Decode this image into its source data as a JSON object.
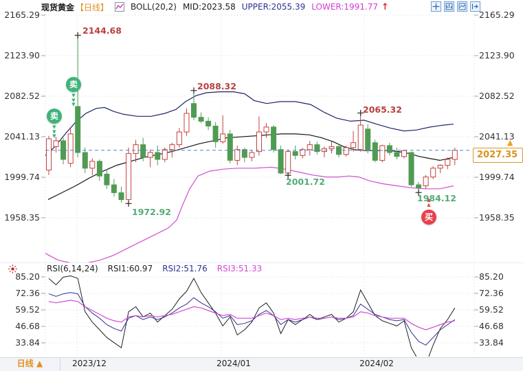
{
  "header": {
    "symbol": "现货黄金",
    "period": "【日线】",
    "boll_label": "BOLL(20,2)",
    "mid_label": "MID:2023.58",
    "upper_label": "UPPER:2055.39",
    "lower_label": "LOWER:1991.77",
    "trend_arrow": "↑"
  },
  "toolbar_icons": [
    {
      "name": "crosshair-icon"
    },
    {
      "name": "indicator-pane-icon"
    },
    {
      "name": "chart-pane-icon"
    },
    {
      "name": "collapse-right-icon"
    }
  ],
  "main_axis": {
    "left": [
      "2165.29",
      "2123.90",
      "2082.52",
      "2041.13",
      "1999.74",
      "1958.35"
    ],
    "right": [
      "2165.29",
      "2123.90",
      "2082.52",
      "2041.13",
      "1999.74",
      "1958.35"
    ]
  },
  "rsi_axis": {
    "left": [
      "85.20",
      "72.36",
      "59.52",
      "46.68",
      "33.84"
    ],
    "right": [
      "85.20",
      "72.36",
      "59.52",
      "46.68",
      "33.84"
    ]
  },
  "x_axis": {
    "labels": [
      "2023/12",
      "2024/01",
      "2024/02"
    ]
  },
  "annotations": [
    {
      "text": "2144.68",
      "kind": "high"
    },
    {
      "text": "2088.32",
      "kind": "high"
    },
    {
      "text": "2065.32",
      "kind": "high"
    },
    {
      "text": "1972.92",
      "kind": "low"
    },
    {
      "text": "2001.72",
      "kind": "low"
    },
    {
      "text": "1984.12",
      "kind": "low"
    }
  ],
  "signals": [
    {
      "label": "卖",
      "type": "sell"
    },
    {
      "label": "卖",
      "type": "sell"
    },
    {
      "label": "买",
      "type": "buy"
    }
  ],
  "signal_arrows": {
    "down": "▼▼▼",
    "up": "▲▲"
  },
  "price_tag": {
    "value": "2027.35",
    "arrow": "▲"
  },
  "rsi_header": {
    "title": "RSI(6,14,24)",
    "rsi1": "RSI1:60.97",
    "rsi2": "RSI2:51.76",
    "rsi3": "RSI3:51.33"
  },
  "bottom_bar": {
    "tab": "日线 ▲"
  },
  "colors": {
    "up_candle": "#c4403e",
    "down_candle": "#4f9b52",
    "mid_band": "#141414",
    "upper_band": "#1c2466",
    "lower_band": "#cf4ecf",
    "rsi1": "#1e1e1e",
    "rsi2": "#2e3192",
    "rsi3": "#d24ad2",
    "price_line": "#4a85cc",
    "grid": "#e3e3e3",
    "tick": "#9aa0a8",
    "accent_orange": "#dd9422",
    "sell_green": "#3fb379",
    "buy_red": "#e8404e"
  },
  "chart_data": {
    "type": "candlestick",
    "title": "现货黄金 日线 BOLL(20,2) + RSI(6,14,24)",
    "y_ticks_main": [
      2165.29,
      2123.9,
      2082.52,
      2041.13,
      1999.74,
      1958.35
    ],
    "y_ticks_rsi": [
      85.2,
      72.36,
      59.52,
      46.68,
      33.84
    ],
    "x_labels": [
      "2023/12",
      "2024/01",
      "2024/02"
    ],
    "current_price": 2027.35,
    "boll": {
      "period": 20,
      "dev": 2,
      "mid": 2023.58,
      "upper": 2055.39,
      "lower": 1991.77
    },
    "rsi_current": {
      "rsi1": 60.97,
      "rsi2": 51.76,
      "rsi3": 51.33
    },
    "candles": [
      [
        2007,
        2042,
        2002,
        2039
      ],
      [
        2031,
        2041,
        2025,
        2037
      ],
      [
        2037,
        2040,
        2013,
        2018
      ],
      [
        2014,
        2050,
        2010,
        2044
      ],
      [
        2072,
        2144.68,
        2020,
        2025
      ],
      [
        2025,
        2030,
        2004,
        2009
      ],
      [
        2009,
        2019,
        2002,
        2016
      ],
      [
        2016,
        2018,
        1996,
        2001
      ],
      [
        2003,
        2008,
        1988,
        1992
      ],
      [
        1992,
        1998,
        1980,
        1984
      ],
      [
        1984,
        1990,
        1974,
        1977
      ],
      [
        1977,
        2030,
        1972.92,
        2024
      ],
      [
        2024,
        2038,
        2015,
        2033
      ],
      [
        2033,
        2040,
        2016,
        2020
      ],
      [
        2020,
        2028,
        2010,
        2025
      ],
      [
        2025,
        2032,
        2012,
        2018
      ],
      [
        2018,
        2030,
        2015,
        2028
      ],
      [
        2028,
        2035,
        2020,
        2033
      ],
      [
        2033,
        2050,
        2030,
        2046
      ],
      [
        2046,
        2070,
        2042,
        2065
      ],
      [
        2075,
        2088.32,
        2058,
        2061
      ],
      [
        2061,
        2066,
        2055,
        2057
      ],
      [
        2057,
        2061,
        2048,
        2052
      ],
      [
        2052,
        2056,
        2030,
        2036
      ],
      [
        2036,
        2063,
        2034,
        2044
      ],
      [
        2044,
        2048,
        2014,
        2017
      ],
      [
        2017,
        2032,
        2012,
        2028
      ],
      [
        2028,
        2030,
        2015,
        2020
      ],
      [
        2020,
        2027,
        2016,
        2025
      ],
      [
        2026,
        2062,
        2022,
        2046
      ],
      [
        2046,
        2055,
        2040,
        2051
      ],
      [
        2051,
        2053,
        2025,
        2028
      ],
      [
        2028,
        2032,
        2003,
        2004
      ],
      [
        2004,
        2028,
        2001.72,
        2026
      ],
      [
        2026,
        2032,
        2018,
        2022
      ],
      [
        2022,
        2030,
        2019,
        2028
      ],
      [
        2028,
        2037,
        2022,
        2033
      ],
      [
        2033,
        2036,
        2023,
        2026
      ],
      [
        2026,
        2031,
        2020,
        2029
      ],
      [
        2029,
        2036,
        2024,
        2031
      ],
      [
        2031,
        2034,
        2020,
        2023
      ],
      [
        2023,
        2032,
        2021,
        2030
      ],
      [
        2030,
        2047,
        2026,
        2035
      ],
      [
        2028,
        2065.32,
        2026,
        2053
      ],
      [
        2049,
        2054,
        2024,
        2028
      ],
      [
        2035,
        2038,
        2015,
        2017
      ],
      [
        2017,
        2033,
        2015,
        2032
      ],
      [
        2032,
        2035,
        2022,
        2025
      ],
      [
        2025,
        2030,
        2018,
        2021
      ],
      [
        2021,
        2028,
        2019,
        2027
      ],
      [
        2025,
        2026,
        1990,
        1992
      ],
      [
        1992,
        1995,
        1984.12,
        1989
      ],
      [
        1991,
        2002,
        1988,
        2000
      ],
      [
        2000,
        2011,
        1998,
        2009
      ],
      [
        2009,
        2013,
        2004,
        2012
      ],
      [
        2012,
        2020,
        2008,
        2018
      ],
      [
        2018,
        2030,
        2012,
        2027.35
      ]
    ],
    "extremes": [
      {
        "index": 4,
        "value": 2144.68,
        "kind": "high"
      },
      {
        "index": 20,
        "value": 2088.32,
        "kind": "high"
      },
      {
        "index": 43,
        "value": 2065.32,
        "kind": "high"
      },
      {
        "index": 11,
        "value": 1972.92,
        "kind": "low"
      },
      {
        "index": 33,
        "value": 2001.72,
        "kind": "low"
      },
      {
        "index": 51,
        "value": 1984.12,
        "kind": "low"
      }
    ],
    "overlays": {
      "upper_band": [
        [
          66,
          2022
        ],
        [
          80,
          2031
        ],
        [
          95,
          2044
        ],
        [
          110,
          2056
        ],
        [
          125,
          2065
        ],
        [
          140,
          2070
        ],
        [
          152,
          2071
        ],
        [
          165,
          2067
        ],
        [
          180,
          2064
        ],
        [
          200,
          2062
        ],
        [
          220,
          2062
        ],
        [
          240,
          2065
        ],
        [
          256,
          2069
        ],
        [
          270,
          2077
        ],
        [
          285,
          2083
        ],
        [
          300,
          2086
        ],
        [
          320,
          2087
        ],
        [
          340,
          2087
        ],
        [
          356,
          2085
        ],
        [
          370,
          2078
        ],
        [
          388,
          2075
        ],
        [
          408,
          2077
        ],
        [
          430,
          2077
        ],
        [
          452,
          2074
        ],
        [
          472,
          2066
        ],
        [
          490,
          2060
        ],
        [
          510,
          2057
        ],
        [
          530,
          2058
        ],
        [
          548,
          2054
        ],
        [
          568,
          2050
        ],
        [
          588,
          2047
        ],
        [
          606,
          2048
        ],
        [
          626,
          2051
        ],
        [
          645,
          2053
        ],
        [
          660,
          2054
        ]
      ],
      "mid_band": [
        [
          70,
          1977
        ],
        [
          90,
          1984
        ],
        [
          110,
          1991
        ],
        [
          130,
          1999
        ],
        [
          150,
          2006
        ],
        [
          170,
          2012
        ],
        [
          190,
          2016
        ],
        [
          210,
          2020
        ],
        [
          230,
          2023
        ],
        [
          250,
          2026
        ],
        [
          270,
          2030
        ],
        [
          290,
          2034
        ],
        [
          310,
          2037
        ],
        [
          330,
          2040
        ],
        [
          350,
          2041
        ],
        [
          370,
          2042
        ],
        [
          390,
          2043
        ],
        [
          410,
          2044
        ],
        [
          430,
          2044
        ],
        [
          450,
          2043
        ],
        [
          468,
          2040
        ],
        [
          485,
          2036
        ],
        [
          500,
          2031
        ],
        [
          515,
          2028
        ],
        [
          530,
          2027
        ],
        [
          548,
          2027
        ],
        [
          565,
          2027
        ],
        [
          580,
          2026
        ],
        [
          595,
          2024
        ],
        [
          610,
          2021
        ],
        [
          625,
          2019
        ],
        [
          640,
          2017
        ],
        [
          660,
          2020
        ]
      ],
      "lower_band": [
        [
          66,
          1922
        ],
        [
          85,
          1915
        ],
        [
          105,
          1912
        ],
        [
          125,
          1912
        ],
        [
          145,
          1915
        ],
        [
          165,
          1920
        ],
        [
          185,
          1927
        ],
        [
          205,
          1934
        ],
        [
          225,
          1941
        ],
        [
          245,
          1948
        ],
        [
          257,
          1956
        ],
        [
          266,
          1972
        ],
        [
          276,
          1988
        ],
        [
          288,
          2001
        ],
        [
          305,
          2006
        ],
        [
          325,
          2008
        ],
        [
          345,
          2009
        ],
        [
          370,
          2009
        ],
        [
          395,
          2010
        ],
        [
          415,
          2008
        ],
        [
          435,
          2005
        ],
        [
          455,
          2002
        ],
        [
          475,
          2000
        ],
        [
          492,
          2000
        ],
        [
          508,
          2001
        ],
        [
          522,
          2000
        ],
        [
          538,
          1996
        ],
        [
          558,
          1993
        ],
        [
          578,
          1991
        ],
        [
          598,
          1989
        ],
        [
          618,
          1988
        ],
        [
          640,
          1988
        ],
        [
          660,
          1991
        ]
      ]
    },
    "rsi_series": {
      "rsi1": [
        84,
        79,
        85,
        86,
        84,
        58,
        50,
        44,
        38,
        34,
        30,
        58,
        62,
        54,
        57,
        50,
        55,
        60,
        68,
        74,
        84,
        73,
        65,
        57,
        47,
        54,
        40,
        44,
        50,
        61,
        65,
        57,
        41,
        52,
        48,
        52,
        56,
        52,
        54,
        56,
        50,
        53,
        58,
        75,
        65,
        55,
        51,
        49,
        47,
        51,
        30,
        20,
        17,
        32,
        45,
        52,
        61
      ],
      "rsi2": [
        72,
        70,
        72,
        73,
        72,
        62,
        57,
        53,
        48,
        45,
        43,
        53,
        55,
        52,
        54,
        52,
        54,
        57,
        61,
        64,
        69,
        65,
        62,
        58,
        53,
        55,
        48,
        49,
        51,
        56,
        59,
        55,
        48,
        52,
        50,
        52,
        54,
        52,
        53,
        54,
        52,
        53,
        55,
        64,
        60,
        56,
        54,
        52,
        51,
        52,
        42,
        35,
        32,
        38,
        44,
        48,
        52
      ],
      "rsi3": [
        66,
        65,
        66,
        67,
        66,
        62,
        59,
        56,
        53,
        51,
        50,
        54,
        55,
        54,
        55,
        54,
        55,
        56,
        58,
        60,
        62,
        61,
        59,
        57,
        55,
        56,
        53,
        53,
        53,
        55,
        57,
        55,
        52,
        53,
        52,
        53,
        54,
        53,
        53,
        54,
        53,
        53,
        54,
        58,
        57,
        55,
        54,
        53,
        53,
        53,
        49,
        46,
        44,
        46,
        48,
        50,
        51
      ]
    }
  }
}
